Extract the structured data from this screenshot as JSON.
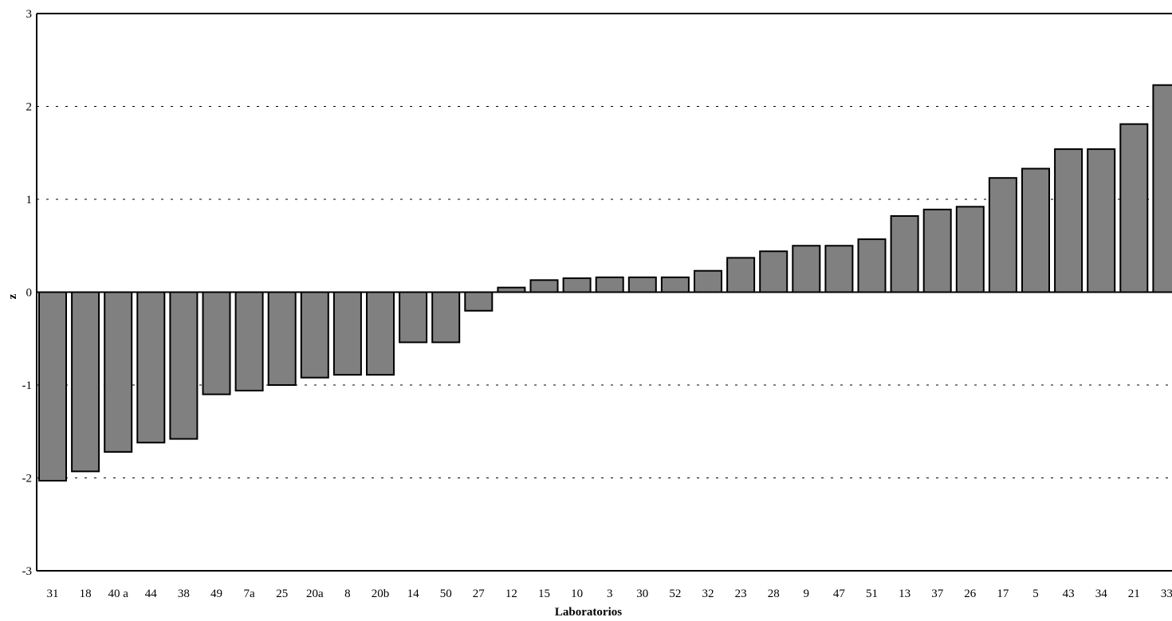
{
  "chart_data": {
    "type": "bar",
    "title": "",
    "xlabel": "Laboratorios",
    "ylabel": "z",
    "ylim": [
      -3,
      3
    ],
    "yticks": [
      "-3",
      "-2",
      "-1",
      "0",
      "1",
      "2",
      "3"
    ],
    "grid": "dashed horizontal",
    "bar_color": "#808080",
    "categories": [
      "31",
      "18",
      "40 a",
      "44",
      "38",
      "49",
      "7a",
      "25",
      "20a",
      "8",
      "20b",
      "14",
      "50",
      "27",
      "12",
      "15",
      "10",
      "3",
      "30",
      "52",
      "32",
      "23",
      "28",
      "9",
      "47",
      "51",
      "13",
      "37",
      "26",
      "17",
      "5",
      "43",
      "34",
      "21",
      "33"
    ],
    "values": [
      -2.03,
      -1.93,
      -1.72,
      -1.62,
      -1.58,
      -1.1,
      -1.06,
      -1.0,
      -0.92,
      -0.89,
      -0.89,
      -0.54,
      -0.54,
      -0.2,
      0.05,
      0.13,
      0.15,
      0.16,
      0.16,
      0.16,
      0.23,
      0.37,
      0.44,
      0.5,
      0.5,
      0.57,
      0.82,
      0.89,
      0.92,
      1.23,
      1.33,
      1.54,
      1.54,
      1.81,
      2.23
    ]
  }
}
